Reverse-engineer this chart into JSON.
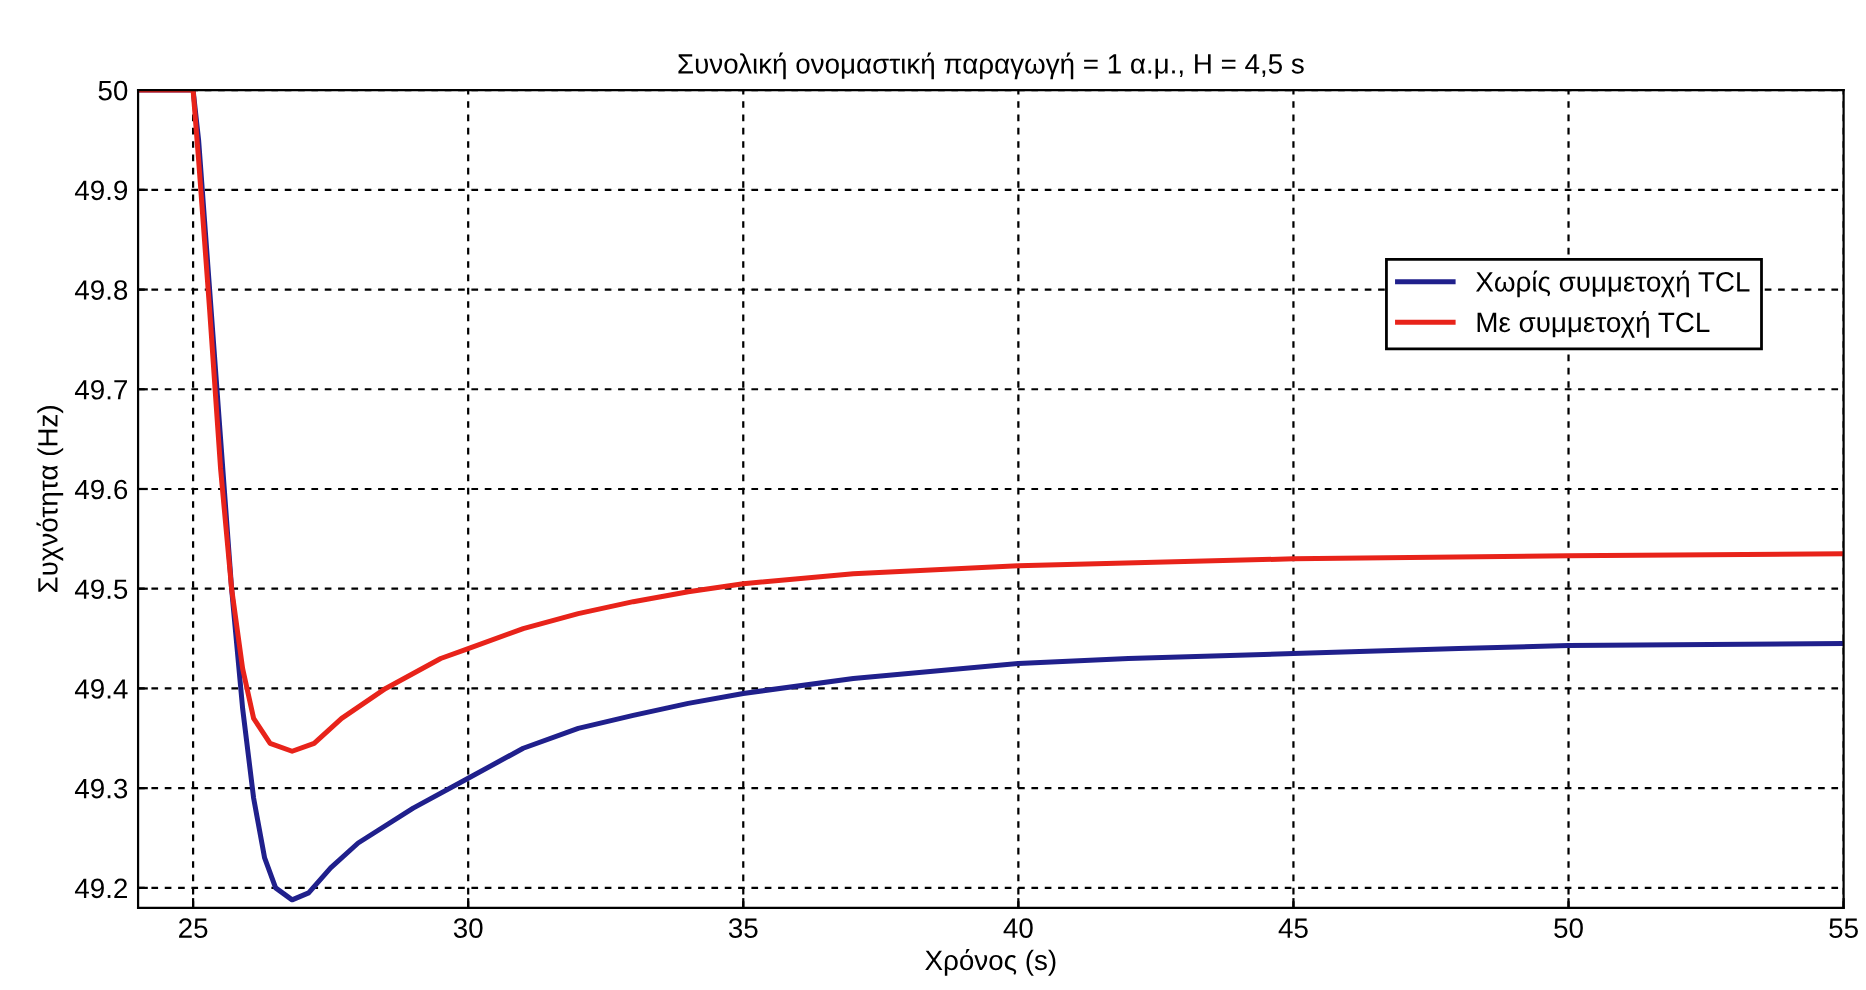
{
  "chart_data": {
    "type": "line",
    "title": "Συνολική ονομαστική παραγωγή = 1 α.μ., H = 4,5 s",
    "xlabel": "Χρόνος (s)",
    "ylabel": "Συχνότητα (Hz)",
    "xlim": [
      24,
      55
    ],
    "xticks": [
      25,
      30,
      35,
      40,
      45,
      50,
      55
    ],
    "ylim": [
      49.18,
      50
    ],
    "yticks": [
      49.2,
      49.3,
      49.4,
      49.5,
      49.6,
      49.7,
      49.8,
      49.9,
      50
    ],
    "grid": true,
    "legend": "top right",
    "line_style": "solid",
    "marker": "none",
    "series": [
      {
        "name": "Χωρίς συμμετοχή TCL",
        "color": "#20208c",
        "x": [
          24,
          25,
          25.1,
          25.3,
          25.5,
          25.7,
          25.9,
          26.1,
          26.3,
          26.5,
          26.8,
          27.1,
          27.5,
          28,
          29,
          30,
          31,
          32,
          33,
          34,
          35,
          37,
          40,
          42,
          45,
          48,
          50,
          55
        ],
        "values": [
          50,
          50,
          49.95,
          49.8,
          49.65,
          49.5,
          49.38,
          49.29,
          49.23,
          49.2,
          49.188,
          49.195,
          49.22,
          49.245,
          49.28,
          49.31,
          49.34,
          49.36,
          49.373,
          49.385,
          49.395,
          49.41,
          49.425,
          49.43,
          49.435,
          49.44,
          49.443,
          49.445
        ]
      },
      {
        "name": "Με συμμετοχή TCL",
        "color": "#e8231a",
        "x": [
          24,
          25,
          25.1,
          25.3,
          25.5,
          25.7,
          25.9,
          26.1,
          26.4,
          26.8,
          27.2,
          27.7,
          28.5,
          29.5,
          30,
          31,
          32,
          33,
          34,
          35,
          37,
          40,
          45,
          50,
          55
        ],
        "values": [
          50,
          50,
          49.93,
          49.78,
          49.62,
          49.5,
          49.42,
          49.37,
          49.345,
          49.337,
          49.345,
          49.37,
          49.4,
          49.43,
          49.44,
          49.46,
          49.475,
          49.487,
          49.497,
          49.505,
          49.515,
          49.523,
          49.53,
          49.533,
          49.535
        ]
      }
    ]
  }
}
